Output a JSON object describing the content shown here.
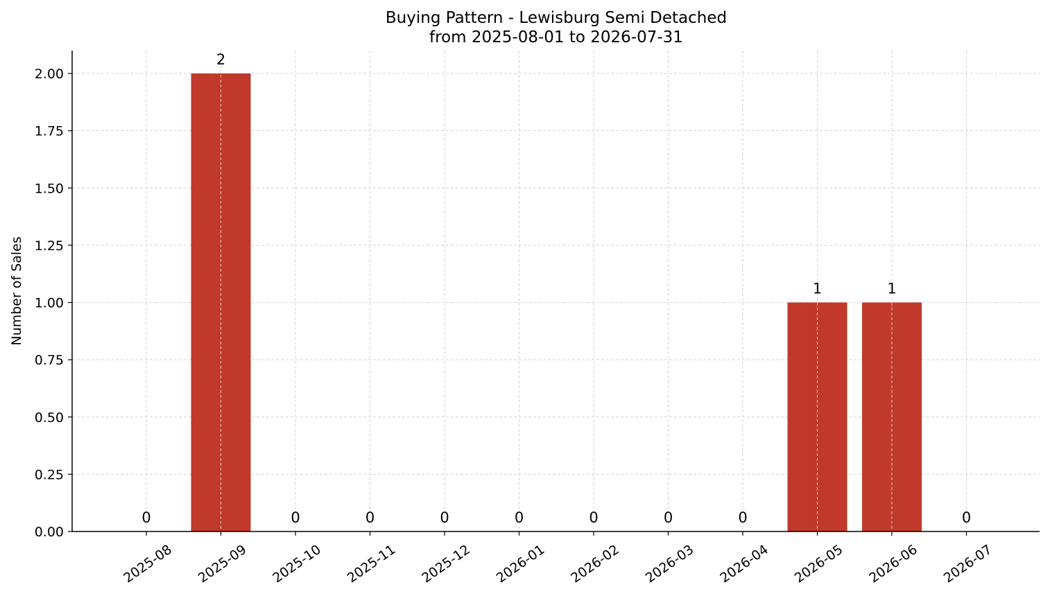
{
  "chart_data": {
    "type": "bar",
    "title": "Buying Pattern - Lewisburg Semi Detached",
    "subtitle": "from 2025-08-01 to 2026-07-31",
    "xlabel": "",
    "ylabel": "Number of Sales",
    "categories": [
      "2025-08",
      "2025-09",
      "2025-10",
      "2025-11",
      "2025-12",
      "2026-01",
      "2026-02",
      "2026-03",
      "2026-04",
      "2026-05",
      "2026-06",
      "2026-07"
    ],
    "values": [
      0,
      2,
      0,
      0,
      0,
      0,
      0,
      0,
      0,
      1,
      1,
      0
    ],
    "data_labels": [
      "0",
      "2",
      "0",
      "0",
      "0",
      "0",
      "0",
      "0",
      "0",
      "1",
      "1",
      "0"
    ],
    "ylim": [
      0,
      2.1
    ],
    "yticks": [
      0,
      0.25,
      0.5,
      0.75,
      1.0,
      1.25,
      1.5,
      1.75,
      2.0
    ],
    "ytick_labels": [
      "0.00",
      "0.25",
      "0.50",
      "0.75",
      "1.00",
      "1.25",
      "1.50",
      "1.75",
      "2.00"
    ],
    "grid": true,
    "bar_color": "#c0392b",
    "grid_color": "#d3d3d3"
  }
}
